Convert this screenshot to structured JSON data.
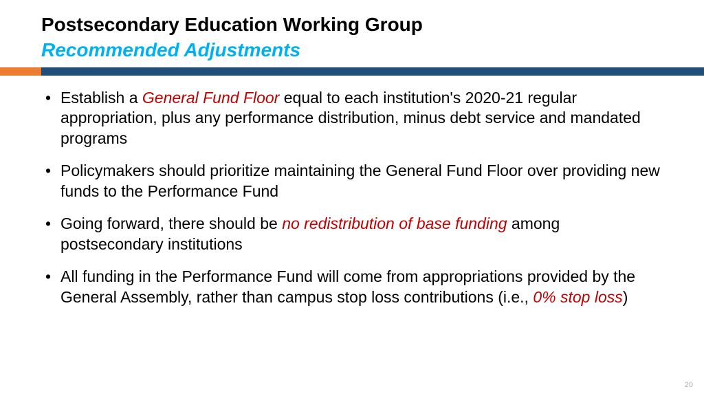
{
  "header": {
    "title": "Postsecondary Education Working Group",
    "subtitle": "Recommended Adjustments",
    "title_color": "#000000",
    "subtitle_color": "#00b0f0",
    "title_fontsize": 28,
    "subtitle_fontsize": 28,
    "rule_orange_color": "#ed7d31",
    "rule_blue_color": "#1f4e79",
    "rule_height": 12,
    "rule_orange_width": 60
  },
  "bullets": [
    {
      "pre": "Establish a ",
      "em": "General Fund Floor",
      "post": " equal to each institution's 2020-21 regular appropriation, plus any performance distribution, minus debt service and mandated programs"
    },
    {
      "pre": "Policymakers should prioritize maintaining the General Fund Floor over providing new funds to the Performance Fund",
      "em": "",
      "post": ""
    },
    {
      "pre": "Going forward, there should be ",
      "em": "no redistribution of base funding",
      "post": " among postsecondary institutions"
    },
    {
      "pre": "All funding in the Performance Fund will come from appropriations provided by the General Assembly, rather than campus stop loss contributions (i.e., ",
      "em": "0% stop loss",
      "post": ")"
    }
  ],
  "body_fontsize": 23,
  "body_color": "#000000",
  "emphasis_color": "#c00000",
  "background_color": "#ffffff",
  "page_number": "20",
  "page_number_color": "#b0b0b0"
}
